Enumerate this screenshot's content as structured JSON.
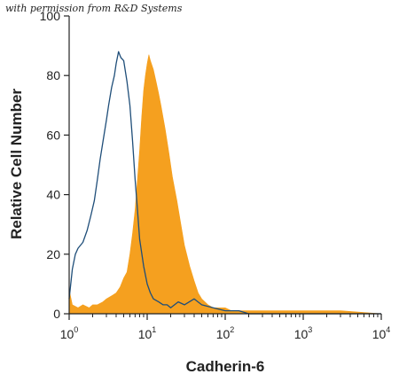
{
  "watermark": "with permission from R&D Systems",
  "colors": {
    "stained": "#F5A01F",
    "control": "#1F4E79",
    "axis": "#222222"
  },
  "chart_data": {
    "type": "area",
    "title": "",
    "xlabel": "Cadherin-6",
    "ylabel": "Relative Cell Number",
    "xscale": "log",
    "xlim": [
      1,
      10000
    ],
    "ylim": [
      0,
      100
    ],
    "yticks": [
      0,
      20,
      40,
      60,
      80,
      100
    ],
    "xticks": [
      {
        "base": "10",
        "exp": "0"
      },
      {
        "base": "10",
        "exp": "1"
      },
      {
        "base": "10",
        "exp": "2"
      },
      {
        "base": "10",
        "exp": "3"
      },
      {
        "base": "10",
        "exp": "4"
      }
    ],
    "grid": false,
    "legend": "none",
    "series": [
      {
        "style": "filled-orange",
        "x": [
          1.0,
          1.1,
          1.3,
          1.5,
          1.8,
          2.0,
          2.3,
          2.7,
          3.0,
          3.5,
          4.0,
          4.5,
          5.0,
          5.5,
          6.0,
          6.5,
          7.0,
          7.5,
          8.0,
          8.5,
          9.0,
          9.5,
          10.0,
          10.5,
          11.0,
          12.0,
          13.0,
          14.0,
          15.0,
          17.0,
          19.0,
          21.0,
          24.0,
          27.0,
          30.0,
          35.0,
          40.0,
          45.0,
          50.0,
          60.0,
          70.0,
          80.0,
          100.0,
          120.0,
          150.0,
          200.0,
          300.0,
          500.0,
          1000.0,
          2000.0,
          3000.0,
          10000.0
        ],
        "y": [
          8,
          3,
          2,
          3,
          2,
          3,
          3,
          4,
          5,
          6,
          7,
          9,
          12,
          14,
          20,
          27,
          35,
          45,
          55,
          66,
          75,
          80,
          84,
          87,
          85,
          82,
          78,
          74,
          70,
          62,
          54,
          46,
          38,
          30,
          23,
          16,
          11,
          7,
          5,
          3,
          2,
          2,
          2,
          1,
          1,
          1,
          1,
          1,
          1,
          1,
          1,
          0
        ]
      },
      {
        "style": "line-navy",
        "x": [
          1.0,
          1.1,
          1.2,
          1.3,
          1.5,
          1.7,
          1.9,
          2.1,
          2.3,
          2.5,
          2.8,
          3.0,
          3.2,
          3.5,
          3.8,
          4.0,
          4.3,
          4.6,
          5.0,
          5.5,
          6.0,
          6.5,
          7.0,
          7.5,
          8.0,
          9.0,
          10.0,
          11.0,
          12.0,
          14.0,
          16.0,
          18.0,
          20.0,
          25.0,
          30.0,
          40.0,
          50.0,
          70.0,
          100.0,
          150.0,
          200.0,
          10000.0
        ],
        "y": [
          5,
          15,
          20,
          22,
          24,
          28,
          33,
          38,
          45,
          52,
          60,
          65,
          70,
          76,
          80,
          84,
          88,
          86,
          85,
          78,
          70,
          58,
          45,
          35,
          25,
          16,
          10,
          7,
          5,
          4,
          3,
          3,
          2,
          4,
          3,
          5,
          3,
          2,
          1,
          1,
          0,
          0
        ]
      }
    ]
  }
}
